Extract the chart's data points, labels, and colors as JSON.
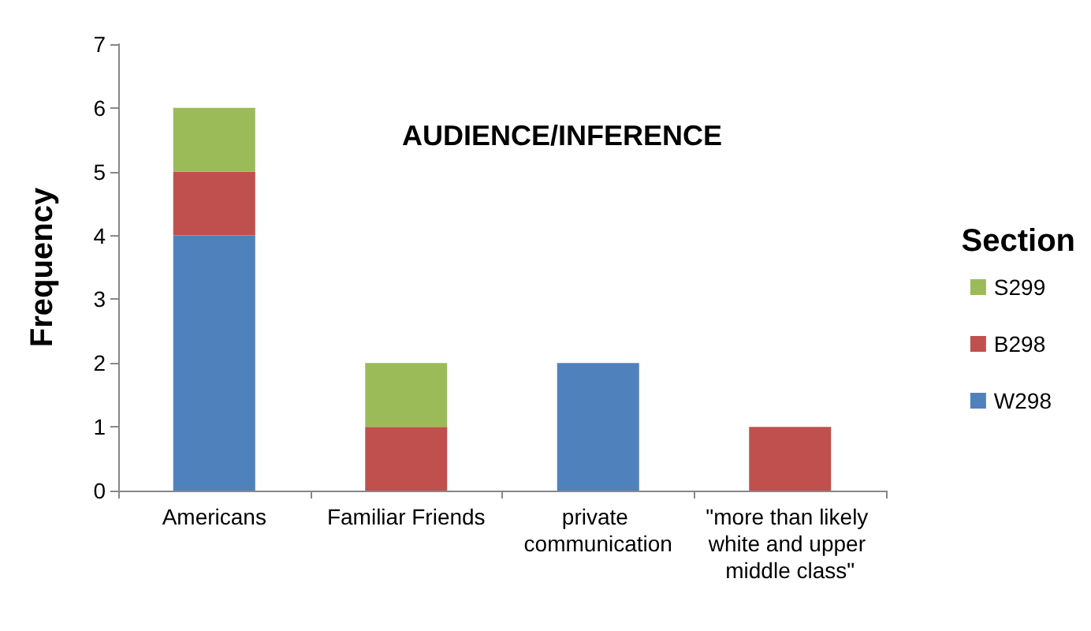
{
  "chart_data": {
    "type": "bar",
    "title": "AUDIENCE/INFERENCE",
    "ylabel": "Frequency",
    "legend_title": "Section",
    "categories": [
      "Americans",
      "Familiar Friends",
      "private communication",
      "\"more than likely white and upper middle class\""
    ],
    "stacked": true,
    "series": [
      {
        "name": "W298",
        "color": "#4f81bd",
        "values": [
          4,
          0,
          2,
          0
        ]
      },
      {
        "name": "B298",
        "color": "#c0504d",
        "values": [
          1,
          1,
          0,
          1
        ]
      },
      {
        "name": "S299",
        "color": "#9bbb59",
        "values": [
          1,
          1,
          0,
          0
        ]
      }
    ],
    "ylim": [
      0,
      7
    ],
    "yticks": [
      0,
      1,
      2,
      3,
      4,
      5,
      6,
      7
    ],
    "grid": false,
    "legend": "right"
  }
}
